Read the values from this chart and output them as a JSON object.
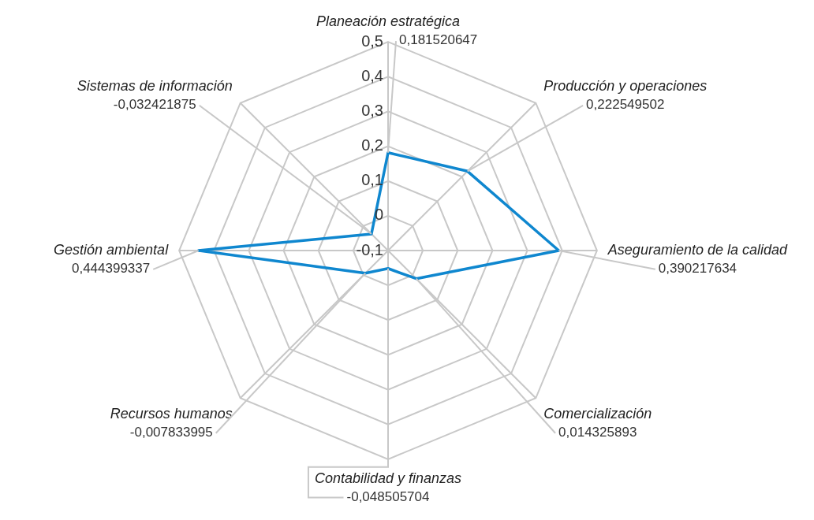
{
  "chart_data": {
    "type": "radar",
    "categories": [
      "Planeación estratégica",
      "Producción y operaciones",
      "Aseguramiento de la calidad",
      "Comercialización",
      "Contabilidad y finanzas",
      "Recursos humanos",
      "Gestión ambiental",
      "Sistemas de información"
    ],
    "series": [
      {
        "color": "#0f87cf",
        "values": [
          0.181520647,
          0.222549502,
          0.390217634,
          0.014325893,
          -0.048505704,
          -0.007833995,
          0.444399337,
          -0.032421875
        ],
        "value_labels": [
          "0,181520647",
          "0,222549502",
          "0,390217634",
          "0,014325893",
          "-0,048505704",
          "-0,007833995",
          "0,444399337",
          "-0,032421875"
        ]
      }
    ],
    "ylim": [
      -0.1,
      0.5
    ],
    "yticks": [
      {
        "value": -0.1,
        "label": "-0,1"
      },
      {
        "value": 0,
        "label": "0"
      },
      {
        "value": 0.1,
        "label": "0,1"
      },
      {
        "value": 0.2,
        "label": "0,2"
      },
      {
        "value": 0.3,
        "label": "0,3"
      },
      {
        "value": 0.4,
        "label": "0,4"
      },
      {
        "value": 0.5,
        "label": "0,5"
      }
    ],
    "grid": true,
    "marker": "none",
    "legend": false
  }
}
